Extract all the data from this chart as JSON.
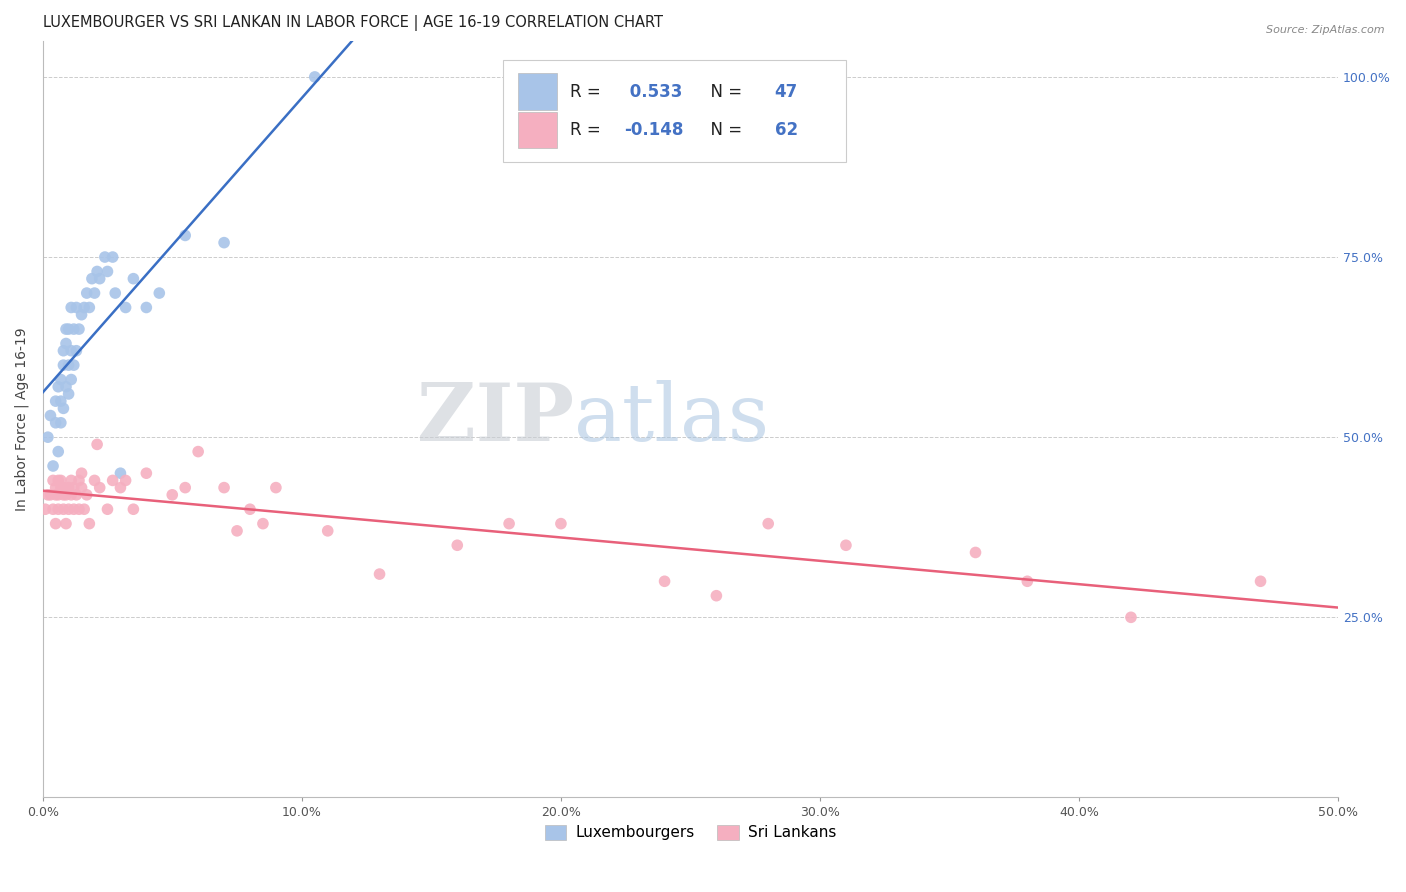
{
  "title": "LUXEMBOURGER VS SRI LANKAN IN LABOR FORCE | AGE 16-19 CORRELATION CHART",
  "source_text": "Source: ZipAtlas.com",
  "ylabel": "In Labor Force | Age 16-19",
  "xlim": [
    0.0,
    0.5
  ],
  "ylim": [
    0.0,
    1.05
  ],
  "xtick_labels": [
    "0.0%",
    "10.0%",
    "20.0%",
    "30.0%",
    "40.0%",
    "50.0%"
  ],
  "xtick_vals": [
    0.0,
    0.1,
    0.2,
    0.3,
    0.4,
    0.5
  ],
  "ytick_vals": [
    0.25,
    0.5,
    0.75,
    1.0
  ],
  "ytick_labels": [
    "25.0%",
    "50.0%",
    "75.0%",
    "100.0%"
  ],
  "blue_R": 0.533,
  "blue_N": 47,
  "pink_R": -0.148,
  "pink_N": 62,
  "blue_color": "#a8c4e8",
  "pink_color": "#f5afc0",
  "blue_line_color": "#3a6fc4",
  "pink_line_color": "#e8607a",
  "legend_blue_label": "Luxembourgers",
  "legend_pink_label": "Sri Lankans",
  "background_color": "#ffffff",
  "grid_color": "#cccccc",
  "title_fontsize": 10.5,
  "axis_label_fontsize": 10,
  "tick_fontsize": 9,
  "marker_size": 70,
  "blue_points_x": [
    0.002,
    0.003,
    0.004,
    0.005,
    0.005,
    0.006,
    0.006,
    0.007,
    0.007,
    0.007,
    0.008,
    0.008,
    0.008,
    0.009,
    0.009,
    0.009,
    0.01,
    0.01,
    0.01,
    0.011,
    0.011,
    0.011,
    0.012,
    0.012,
    0.013,
    0.013,
    0.014,
    0.015,
    0.016,
    0.017,
    0.018,
    0.019,
    0.02,
    0.021,
    0.022,
    0.024,
    0.025,
    0.027,
    0.028,
    0.03,
    0.032,
    0.035,
    0.04,
    0.045,
    0.055,
    0.07,
    0.105
  ],
  "blue_points_y": [
    0.5,
    0.53,
    0.46,
    0.55,
    0.52,
    0.48,
    0.57,
    0.52,
    0.58,
    0.55,
    0.54,
    0.6,
    0.62,
    0.57,
    0.63,
    0.65,
    0.56,
    0.6,
    0.65,
    0.58,
    0.62,
    0.68,
    0.6,
    0.65,
    0.62,
    0.68,
    0.65,
    0.67,
    0.68,
    0.7,
    0.68,
    0.72,
    0.7,
    0.73,
    0.72,
    0.75,
    0.73,
    0.75,
    0.7,
    0.45,
    0.68,
    0.72,
    0.68,
    0.7,
    0.78,
    0.77,
    1.0
  ],
  "pink_points_x": [
    0.001,
    0.002,
    0.003,
    0.004,
    0.004,
    0.005,
    0.005,
    0.005,
    0.006,
    0.006,
    0.006,
    0.007,
    0.007,
    0.008,
    0.008,
    0.008,
    0.009,
    0.009,
    0.01,
    0.01,
    0.011,
    0.011,
    0.012,
    0.012,
    0.013,
    0.014,
    0.014,
    0.015,
    0.015,
    0.016,
    0.017,
    0.018,
    0.02,
    0.021,
    0.022,
    0.025,
    0.027,
    0.03,
    0.032,
    0.035,
    0.04,
    0.05,
    0.055,
    0.06,
    0.07,
    0.075,
    0.08,
    0.085,
    0.09,
    0.11,
    0.13,
    0.16,
    0.18,
    0.2,
    0.24,
    0.26,
    0.28,
    0.31,
    0.36,
    0.38,
    0.42,
    0.47
  ],
  "pink_points_y": [
    0.4,
    0.42,
    0.42,
    0.44,
    0.4,
    0.42,
    0.38,
    0.43,
    0.44,
    0.4,
    0.42,
    0.43,
    0.44,
    0.4,
    0.42,
    0.43,
    0.38,
    0.42,
    0.4,
    0.43,
    0.42,
    0.44,
    0.4,
    0.43,
    0.42,
    0.4,
    0.44,
    0.43,
    0.45,
    0.4,
    0.42,
    0.38,
    0.44,
    0.49,
    0.43,
    0.4,
    0.44,
    0.43,
    0.44,
    0.4,
    0.45,
    0.42,
    0.43,
    0.48,
    0.43,
    0.37,
    0.4,
    0.38,
    0.43,
    0.37,
    0.31,
    0.35,
    0.38,
    0.38,
    0.3,
    0.28,
    0.38,
    0.35,
    0.34,
    0.3,
    0.25,
    0.3
  ]
}
